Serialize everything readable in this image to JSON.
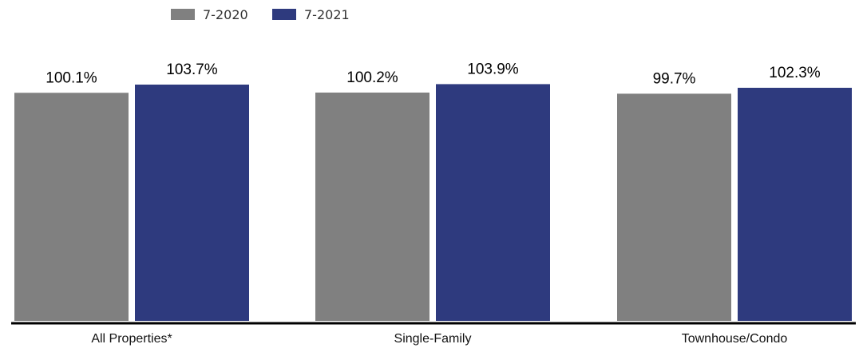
{
  "chart_data": {
    "type": "bar",
    "categories": [
      "All Properties*",
      "Single-Family",
      "Townhouse/Condo"
    ],
    "series": [
      {
        "name": "7-2020",
        "color": "#808080",
        "values": [
          100.1,
          100.2,
          99.7
        ],
        "labels": [
          "100.1%",
          "100.2%",
          "99.7%"
        ]
      },
      {
        "name": "7-2021",
        "color": "#2e3a7e",
        "values": [
          103.7,
          103.9,
          102.3
        ],
        "labels": [
          "103.7%",
          "103.9%",
          "102.3%"
        ]
      }
    ],
    "ylim": [
      0,
      110
    ],
    "title": "",
    "xlabel": "",
    "ylabel": "",
    "grid": false,
    "legend_position": "top-left"
  }
}
